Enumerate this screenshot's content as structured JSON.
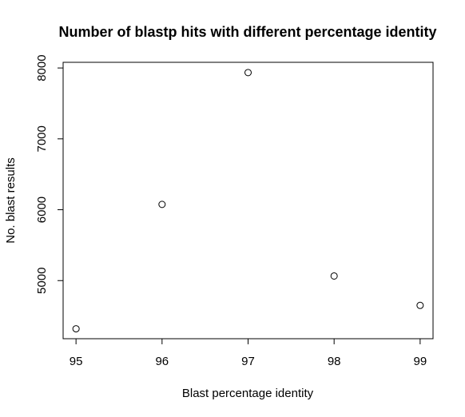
{
  "chart_data": {
    "type": "scatter",
    "title": "Number of blastp hits with different percentage identity",
    "xlabel": "Blast percentage identity",
    "ylabel": "No. blast results",
    "x": [
      95,
      96,
      97,
      98,
      99
    ],
    "y": [
      4320,
      6075,
      7935,
      5065,
      4650
    ],
    "xlim": [
      94.85,
      99.15
    ],
    "ylim": [
      4180,
      8080
    ],
    "xticks": [
      95,
      96,
      97,
      98,
      99
    ],
    "yticks": [
      5000,
      6000,
      7000,
      8000
    ],
    "xtick_labels": [
      "95",
      "96",
      "97",
      "98",
      "99"
    ],
    "ytick_labels": [
      "5000",
      "6000",
      "7000",
      "8000"
    ],
    "grid": false,
    "legend": "none",
    "marker": "open-circle",
    "color": "#000000"
  }
}
